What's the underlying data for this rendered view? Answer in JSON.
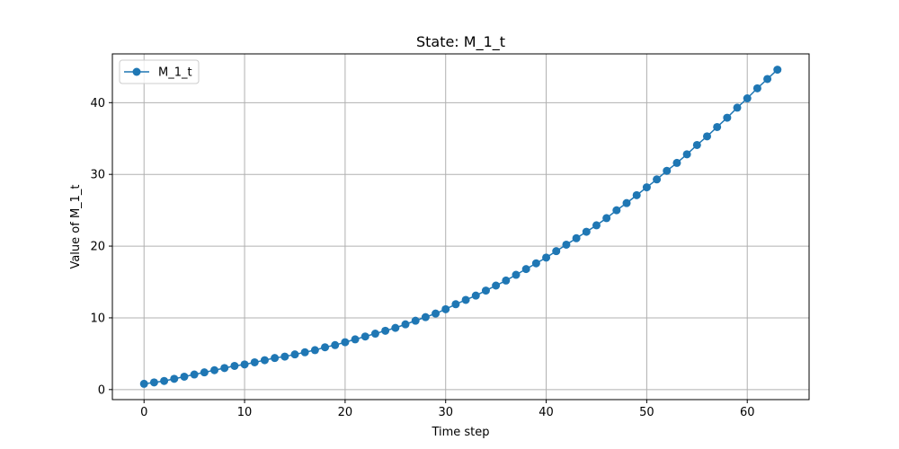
{
  "chart_data": {
    "type": "line",
    "title": "State: M_1_t",
    "xlabel": "Time step",
    "ylabel": "Value of M_1_t",
    "xlim": [
      -3.15,
      66.15
    ],
    "ylim": [
      -1.4,
      46.8
    ],
    "xticks": [
      0,
      10,
      20,
      30,
      40,
      50,
      60
    ],
    "yticks": [
      0,
      10,
      20,
      30,
      40
    ],
    "grid": true,
    "legend_position": "upper-left",
    "marker": "circle",
    "colors": {
      "series": "#1f77b4",
      "grid": "#b0b0b0",
      "axes": "#000000"
    },
    "series": [
      {
        "name": "M_1_t",
        "x": [
          0,
          1,
          2,
          3,
          4,
          5,
          6,
          7,
          8,
          9,
          10,
          11,
          12,
          13,
          14,
          15,
          16,
          17,
          18,
          19,
          20,
          21,
          22,
          23,
          24,
          25,
          26,
          27,
          28,
          29,
          30,
          31,
          32,
          33,
          34,
          35,
          36,
          37,
          38,
          39,
          40,
          41,
          42,
          43,
          44,
          45,
          46,
          47,
          48,
          49,
          50,
          51,
          52,
          53,
          54,
          55,
          56,
          57,
          58,
          59,
          60,
          61,
          62,
          63
        ],
        "y": [
          0.8,
          1.0,
          1.2,
          1.5,
          1.8,
          2.1,
          2.4,
          2.7,
          3.0,
          3.3,
          3.5,
          3.8,
          4.1,
          4.4,
          4.6,
          4.9,
          5.2,
          5.5,
          5.9,
          6.2,
          6.6,
          7.0,
          7.4,
          7.8,
          8.2,
          8.6,
          9.1,
          9.6,
          10.1,
          10.6,
          11.2,
          11.9,
          12.5,
          13.1,
          13.8,
          14.5,
          15.2,
          16.0,
          16.8,
          17.6,
          18.4,
          19.3,
          20.2,
          21.1,
          22.0,
          22.9,
          23.9,
          25.0,
          26.0,
          27.1,
          28.2,
          29.3,
          30.5,
          31.6,
          32.8,
          34.1,
          35.3,
          36.6,
          37.9,
          39.3,
          40.6,
          42.0,
          43.3,
          44.6
        ]
      }
    ]
  }
}
